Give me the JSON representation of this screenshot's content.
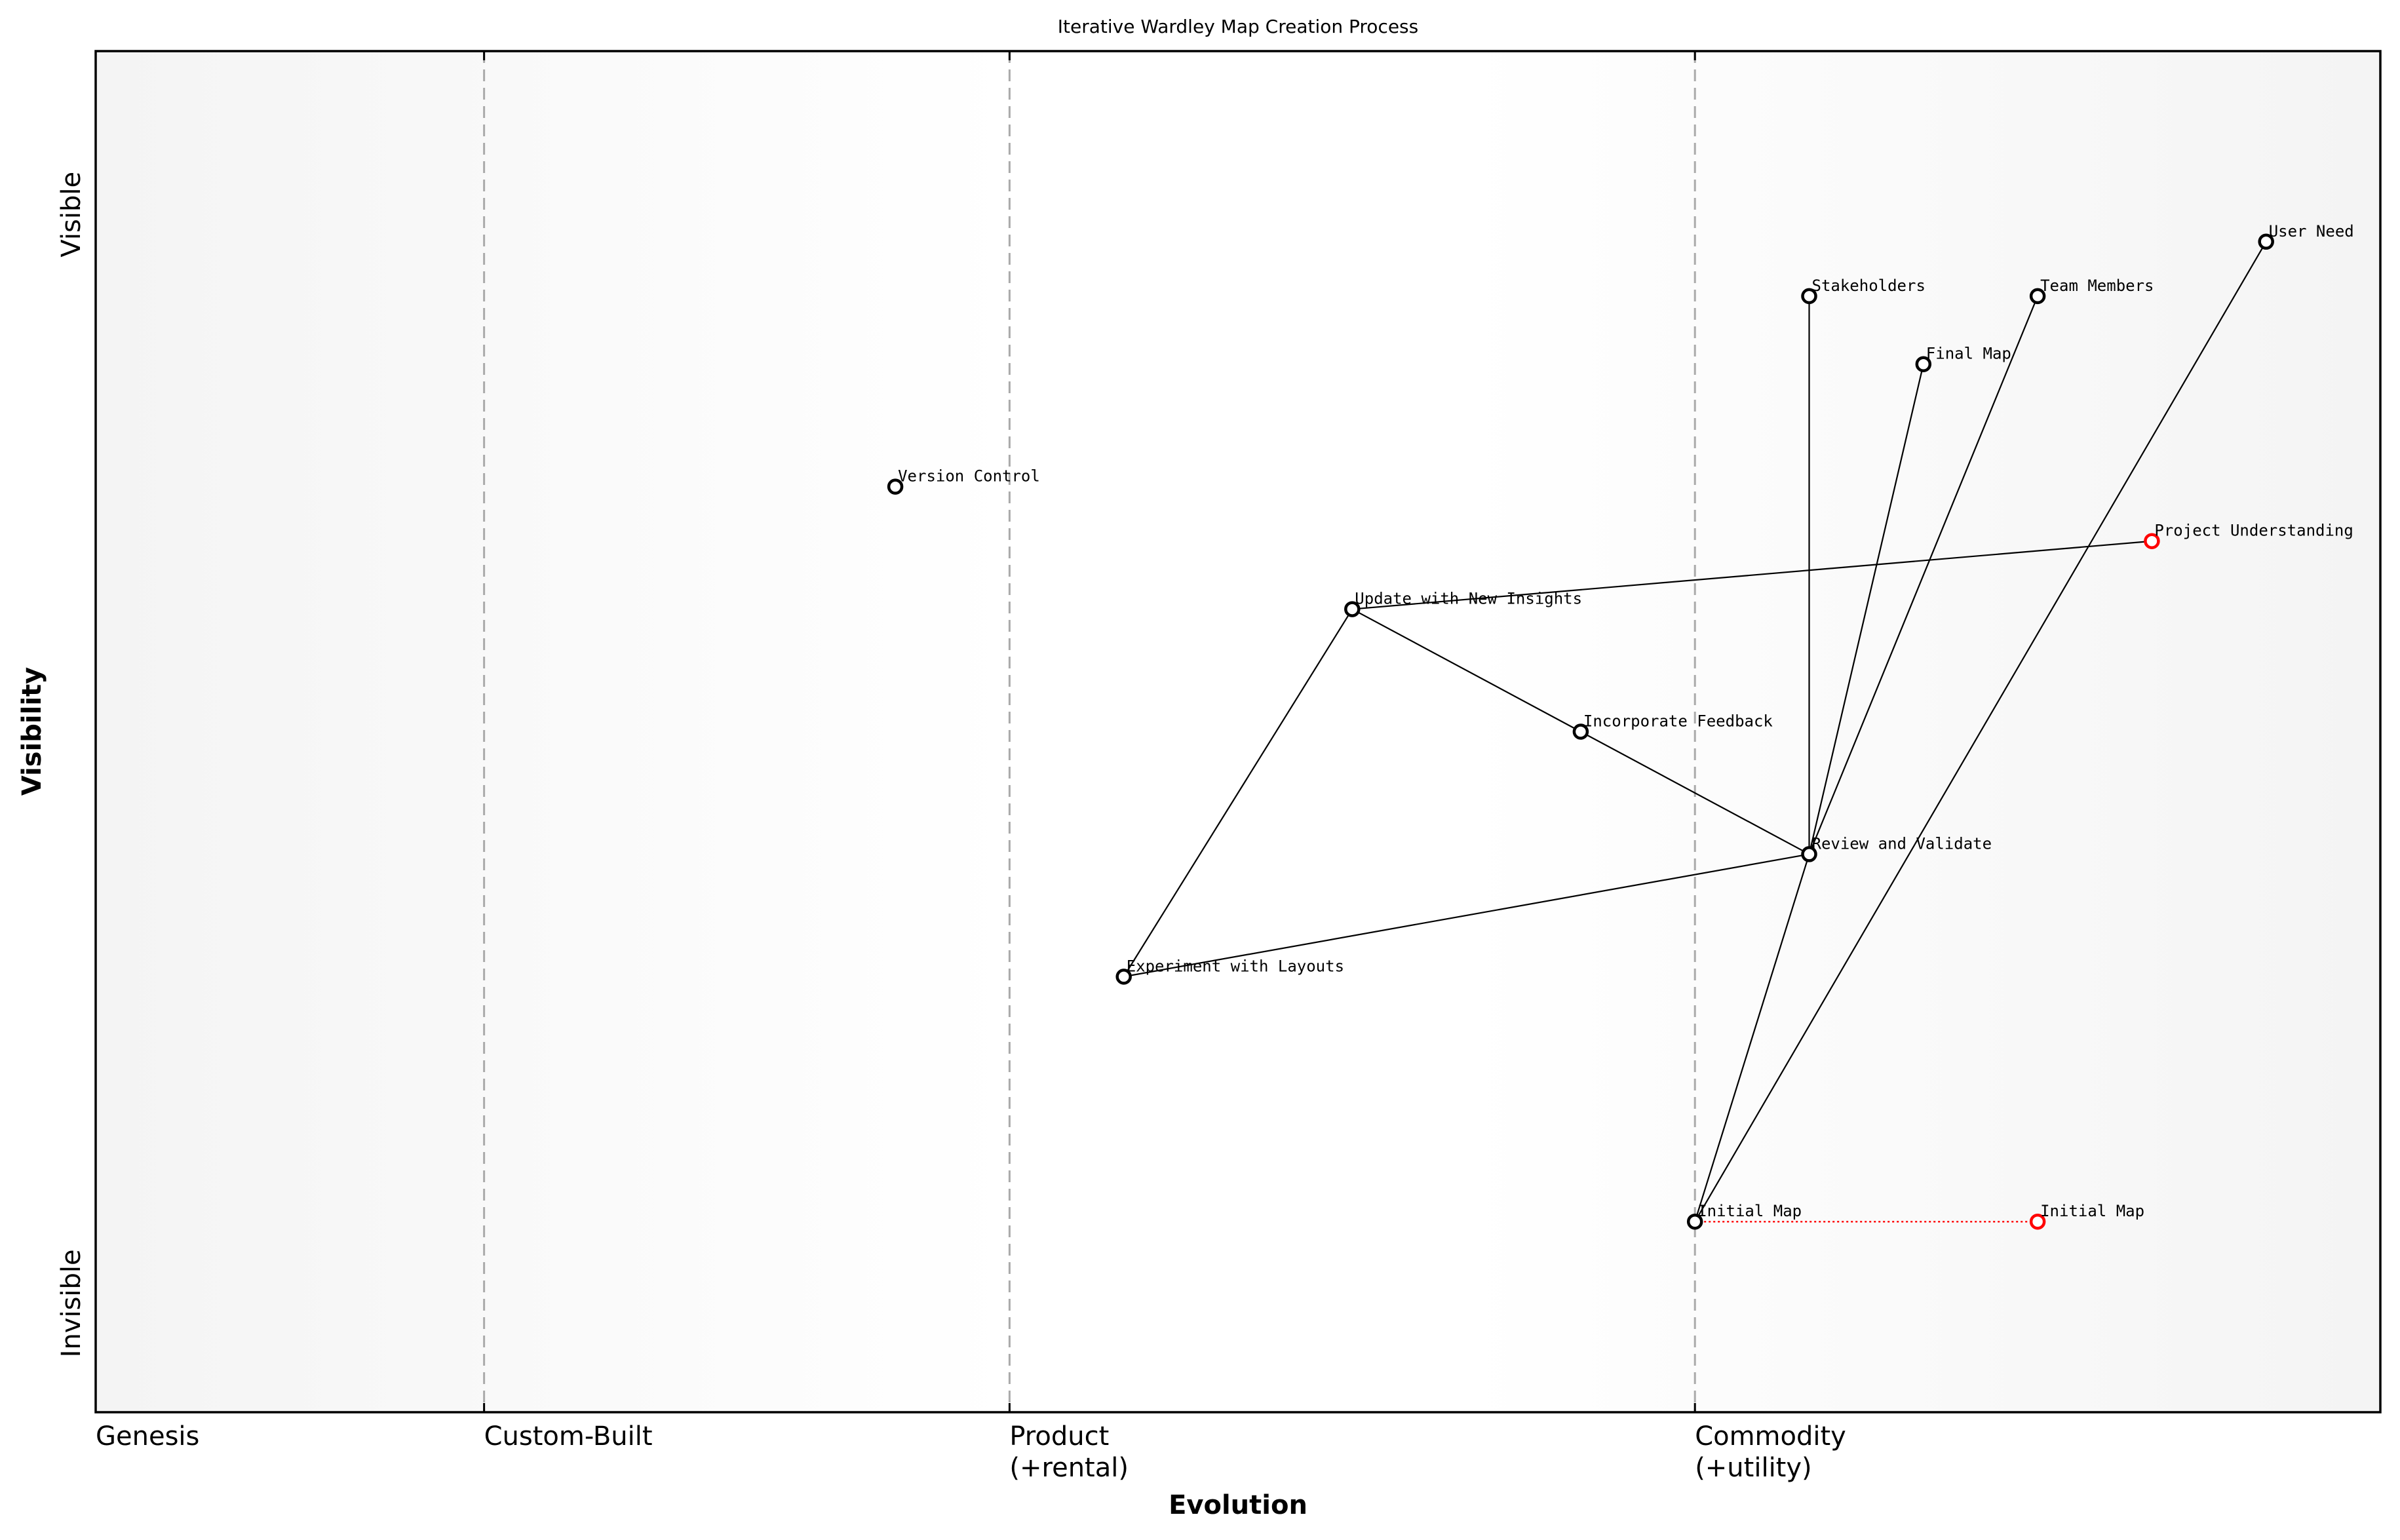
{
  "chart_data": {
    "type": "scatter",
    "subtype": "wardley-map",
    "title": "Iterative Wardley Map Creation Process",
    "xlabel": "Evolution",
    "ylabel": "Visibility",
    "xlim": [
      0,
      1
    ],
    "ylim": [
      0,
      1
    ],
    "grid": false,
    "x_stages": [
      {
        "label": "Genesis",
        "x": 0.0
      },
      {
        "label": "Custom-Built",
        "x": 0.17
      },
      {
        "label": "Product\n(+rental)",
        "x": 0.4
      },
      {
        "label": "Commodity\n(+utility)",
        "x": 0.7
      }
    ],
    "y_ticks": [
      {
        "label": "Invisible",
        "y": 0.08
      },
      {
        "label": "Visible",
        "y": 0.88
      }
    ],
    "nodes": [
      {
        "id": "user-need",
        "label": "User Need",
        "x": 0.95,
        "y": 0.86,
        "color": "#000000"
      },
      {
        "id": "stakeholders",
        "label": "Stakeholders",
        "x": 0.75,
        "y": 0.82,
        "color": "#000000"
      },
      {
        "id": "team-members",
        "label": "Team Members",
        "x": 0.85,
        "y": 0.82,
        "color": "#000000"
      },
      {
        "id": "final-map",
        "label": "Final Map",
        "x": 0.8,
        "y": 0.77,
        "color": "#000000"
      },
      {
        "id": "version-control",
        "label": "Version Control",
        "x": 0.35,
        "y": 0.68,
        "color": "#000000"
      },
      {
        "id": "project-understanding",
        "label": "Project Understanding",
        "x": 0.9,
        "y": 0.64,
        "color": "#ff0000"
      },
      {
        "id": "update-insights",
        "label": "Update with New Insights",
        "x": 0.55,
        "y": 0.59,
        "color": "#000000"
      },
      {
        "id": "incorporate-feedback",
        "label": "Incorporate Feedback",
        "x": 0.65,
        "y": 0.5,
        "color": "#000000"
      },
      {
        "id": "review-validate",
        "label": "Review and Validate",
        "x": 0.75,
        "y": 0.41,
        "color": "#000000"
      },
      {
        "id": "experiment-layouts",
        "label": "Experiment with Layouts",
        "x": 0.45,
        "y": 0.32,
        "color": "#000000"
      },
      {
        "id": "initial-map",
        "label": "Initial Map",
        "x": 0.7,
        "y": 0.14,
        "color": "#000000"
      },
      {
        "id": "initial-map-evolved",
        "label": "Initial Map",
        "x": 0.85,
        "y": 0.14,
        "color": "#ff0000"
      }
    ],
    "links": [
      {
        "from": "user-need",
        "to": "initial-map",
        "style": "solid"
      },
      {
        "from": "stakeholders",
        "to": "review-validate",
        "style": "solid"
      },
      {
        "from": "team-members",
        "to": "review-validate",
        "style": "solid"
      },
      {
        "from": "final-map",
        "to": "review-validate",
        "style": "solid"
      },
      {
        "from": "review-validate",
        "to": "initial-map",
        "style": "solid"
      },
      {
        "from": "review-validate",
        "to": "incorporate-feedback",
        "style": "solid"
      },
      {
        "from": "incorporate-feedback",
        "to": "update-insights",
        "style": "solid"
      },
      {
        "from": "update-insights",
        "to": "project-understanding",
        "style": "solid"
      },
      {
        "from": "update-insights",
        "to": "experiment-layouts",
        "style": "solid"
      },
      {
        "from": "experiment-layouts",
        "to": "review-validate",
        "style": "solid"
      }
    ],
    "evolutions": [
      {
        "from": "initial-map",
        "to": "initial-map-evolved",
        "style": "dotted",
        "color": "#ff0000"
      }
    ]
  },
  "colors": {
    "axis": "#000000",
    "stage_divider": "#aaaaaa",
    "background_edge": "#f5f5f5",
    "background_center": "#ffffff",
    "node_default": "#000000",
    "node_highlight": "#ff0000",
    "evolution_line": "#ff0000"
  }
}
